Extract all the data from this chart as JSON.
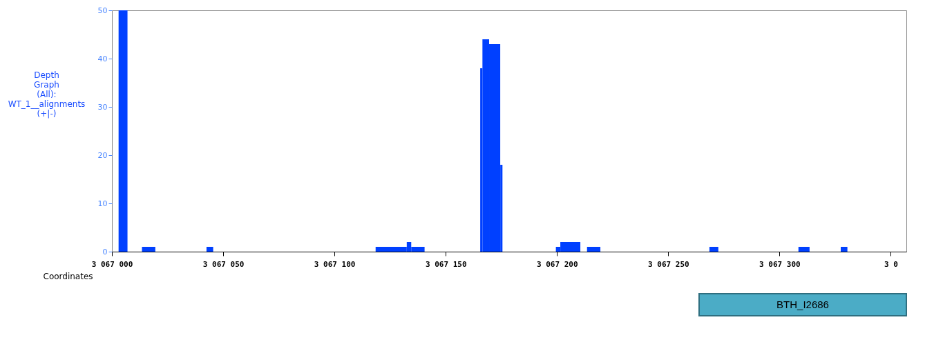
{
  "chart_data": {
    "type": "histogram",
    "ylabel": "Depth Graph (All): WT_1__alignments (+|-)",
    "xlabel": "Coordinates",
    "bins": [
      3067003,
      3067007,
      3067013.5,
      3067019.5,
      3067042.5,
      3067045.5,
      3067118.5,
      3067132.5,
      3067134.5,
      3067140.5,
      3067165.5,
      3067166.5,
      3067169.5,
      3067174.5,
      3067175.5,
      3067199.5,
      3067201.5,
      3067210.5,
      3067213.5,
      3067219.5,
      3067268.5,
      3067272.5,
      3067308.5,
      3067313.5,
      3067327.5,
      3067330.5
    ],
    "values": [
      50,
      0,
      1,
      0,
      1,
      0,
      1,
      2,
      1,
      0,
      38,
      44,
      43,
      18,
      0,
      1,
      2,
      0,
      1,
      0,
      1,
      0,
      1,
      0,
      1
    ],
    "color": "#0040ff",
    "xlim": [
      3067000,
      3067357
    ],
    "xticks": [
      {
        "value": 3067000,
        "label": "3 067 000"
      },
      {
        "value": 3067050,
        "label": "3 067 050"
      },
      {
        "value": 3067100,
        "label": "3 067 100"
      },
      {
        "value": 3067150,
        "label": "3 067 150"
      },
      {
        "value": 3067200,
        "label": "3 067 200"
      },
      {
        "value": 3067250,
        "label": "3 067 250"
      },
      {
        "value": 3067300,
        "label": "3 067 300"
      },
      {
        "value": 3067350,
        "label": "3 0"
      }
    ],
    "ylim": [
      0,
      50
    ],
    "yticks": [
      0,
      10,
      20,
      30,
      40,
      50
    ],
    "grid": false,
    "annotations": [
      "BTH_I2686"
    ]
  }
}
